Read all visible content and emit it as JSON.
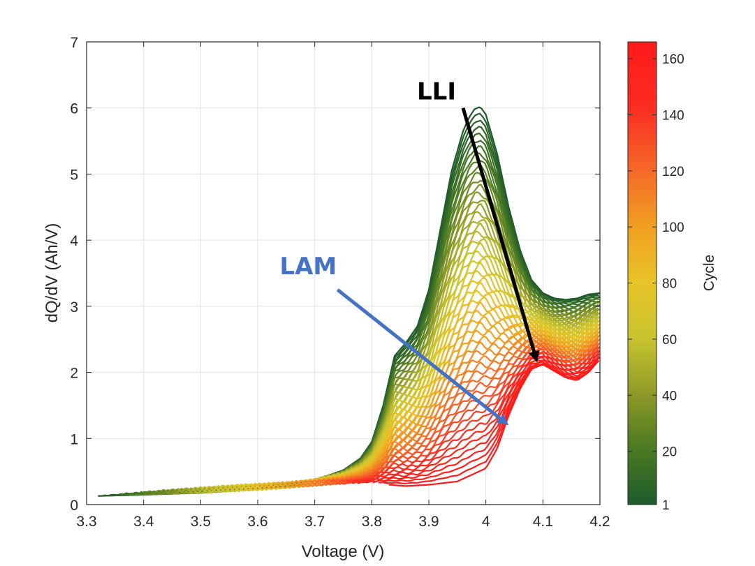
{
  "chart_data": {
    "type": "line",
    "xlabel": "Voltage (V)",
    "ylabel": "dQ/dV (Ah/V)",
    "xlim": [
      3.3,
      4.2
    ],
    "ylim": [
      0,
      7
    ],
    "xticks": [
      "3.3",
      "3.4",
      "3.5",
      "3.6",
      "3.7",
      "3.8",
      "3.9",
      "4",
      "4.1",
      "4.2"
    ],
    "yticks": [
      "0",
      "1",
      "2",
      "3",
      "4",
      "5",
      "6",
      "7"
    ],
    "grid": true,
    "colorbar": {
      "label": "Cycle",
      "range": [
        1,
        166
      ],
      "ticks": [
        "1",
        "20",
        "40",
        "60",
        "80",
        "100",
        "120",
        "140",
        "160"
      ],
      "colors": [
        "#1e5a2c",
        "#4a7a22",
        "#8f9a28",
        "#c8c42e",
        "#e8c428",
        "#f0a020",
        "#f56a28",
        "#fb2c22",
        "#ff1a1a"
      ]
    },
    "cycles": {
      "first": 1,
      "last": 166,
      "step": 3
    },
    "series_first_cycle": {
      "name": "Cycle 1",
      "x": [
        3.32,
        3.4,
        3.5,
        3.6,
        3.65,
        3.7,
        3.75,
        3.78,
        3.8,
        3.82,
        3.84,
        3.86,
        3.88,
        3.9,
        3.92,
        3.94,
        3.96,
        3.97,
        3.98,
        3.99,
        4.0,
        4.02,
        4.04,
        4.06,
        4.08,
        4.1,
        4.12,
        4.14,
        4.16,
        4.18,
        4.2
      ],
      "y": [
        0.13,
        0.15,
        0.18,
        0.24,
        0.29,
        0.37,
        0.52,
        0.7,
        0.95,
        1.5,
        2.25,
        2.45,
        2.7,
        3.25,
        4.15,
        5.05,
        5.65,
        5.85,
        5.98,
        6.02,
        5.9,
        5.3,
        4.5,
        3.85,
        3.4,
        3.2,
        3.12,
        3.1,
        3.12,
        3.18,
        3.2
      ]
    },
    "series_last_cycle": {
      "name": "Cycle 166",
      "x": [
        3.83,
        3.86,
        3.9,
        3.95,
        4.0,
        4.02,
        4.04,
        4.06,
        4.08,
        4.1,
        4.12,
        4.14,
        4.16,
        4.18,
        4.2
      ],
      "y": [
        0.3,
        0.28,
        0.3,
        0.35,
        0.55,
        0.85,
        1.35,
        1.75,
        2.05,
        2.12,
        2.02,
        1.92,
        1.88,
        2.0,
        2.2
      ]
    },
    "annotations": [
      {
        "text": "LLI",
        "color": "#000000",
        "from": [
          3.96,
          6.0
        ],
        "to": [
          4.09,
          2.15
        ]
      },
      {
        "text": "LAM",
        "color": "#4472c4",
        "from": [
          3.74,
          3.25
        ],
        "to": [
          4.04,
          1.2
        ]
      }
    ]
  }
}
